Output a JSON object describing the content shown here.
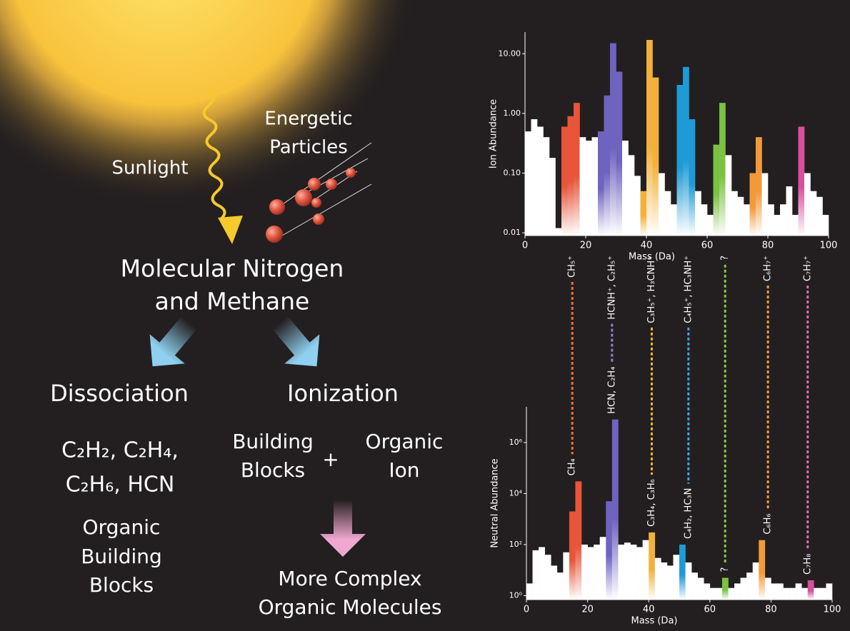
{
  "diagram": {
    "sunlight": "Sunlight",
    "particles": [
      "Energetic",
      "Particles"
    ],
    "source": [
      "Molecular Nitrogen",
      "and Methane"
    ],
    "dissociation": {
      "title": "Dissociation",
      "products": [
        "C₂H₂, C₂H₄,",
        "C₂H₆, HCN"
      ],
      "result": [
        "Organic",
        "Building",
        "Blocks"
      ]
    },
    "ionization": {
      "title": "Ionization",
      "left": [
        "Building",
        "Blocks"
      ],
      "plus": "+",
      "right": [
        "Organic",
        "Ion"
      ],
      "result": [
        "More Complex",
        "Organic Molecules"
      ]
    }
  },
  "chart_data": [
    {
      "type": "histogram",
      "ylabel": "Ion Abundance",
      "xlabel": "Mass (Da)",
      "yscale": "log",
      "bins": [
        0,
        2,
        4,
        6,
        8,
        10,
        12,
        14,
        16,
        18,
        20,
        22,
        24,
        26,
        28,
        30,
        32,
        34,
        36,
        38,
        40,
        42,
        44,
        46,
        48,
        50,
        52,
        54,
        56,
        58,
        60,
        62,
        64,
        66,
        68,
        70,
        72,
        74,
        76,
        78,
        80,
        82,
        84,
        86,
        88,
        90,
        92,
        94,
        96,
        98,
        100
      ],
      "values": [
        0.5,
        0.8,
        0.6,
        0.4,
        0.18,
        0.012,
        0.6,
        0.9,
        1.5,
        0.4,
        0.35,
        0.4,
        0.5,
        2,
        15,
        5,
        0.35,
        0.2,
        0.09,
        0.05,
        17,
        4,
        0.1,
        0.05,
        0.03,
        3,
        6,
        0.8,
        0.05,
        0.03,
        0.02,
        0.3,
        1.5,
        0.2,
        0.05,
        0.04,
        0.03,
        0.1,
        0.4,
        0.1,
        0.03,
        0.02,
        0.03,
        0.06,
        0.02,
        0.6,
        0.1,
        0.05,
        0.04,
        0.02
      ],
      "colors": [
        "#ffffff",
        "#ffffff",
        "#ffffff",
        "#ffffff",
        "#ffffff",
        "#ffffff",
        "#e8553a",
        "#e8553a",
        "#e8553a",
        "#ffffff",
        "#ffffff",
        "#ffffff",
        "#6f63c0",
        "#6f63c0",
        "#6f63c0",
        "#6f63c0",
        "#ffffff",
        "#ffffff",
        "#ffffff",
        "#f2b13a",
        "#f2b13a",
        "#f2b13a",
        "#ffffff",
        "#ffffff",
        "#ffffff",
        "#1e9ad6",
        "#1e9ad6",
        "#1e9ad6",
        "#ffffff",
        "#ffffff",
        "#ffffff",
        "#7cc242",
        "#7cc242",
        "#ffffff",
        "#ffffff",
        "#ffffff",
        "#ffffff",
        "#f29a3a",
        "#f29a3a",
        "#ffffff",
        "#ffffff",
        "#ffffff",
        "#ffffff",
        "#ffffff",
        "#ffffff",
        "#d84f9c",
        "#ffffff",
        "#ffffff",
        "#ffffff",
        "#ffffff"
      ],
      "xlim": [
        0,
        100
      ],
      "xticks": [
        0,
        20,
        40,
        60,
        80,
        100
      ],
      "ylim": [
        0.009,
        23
      ],
      "yticks": [
        0.01,
        {
          "value": 0.1,
          "label": "0.10"
        },
        {
          "value": 1,
          "label": "1.00"
        },
        {
          "value": 10,
          "label": "10.00"
        }
      ]
    },
    {
      "type": "histogram",
      "ylabel": "Neutral Abundance",
      "xlabel": "Mass (Da)",
      "yscale": "log",
      "bins": [
        0,
        2,
        4,
        6,
        8,
        10,
        12,
        14,
        16,
        18,
        20,
        22,
        24,
        26,
        28,
        30,
        32,
        34,
        36,
        38,
        40,
        42,
        44,
        46,
        48,
        50,
        52,
        54,
        56,
        58,
        60,
        62,
        64,
        66,
        68,
        70,
        72,
        74,
        76,
        78,
        80,
        82,
        84,
        86,
        88,
        90,
        92,
        94,
        96,
        98,
        100
      ],
      "values": [
        3,
        60,
        80,
        40,
        15,
        8,
        50,
        2000,
        30000,
        100,
        80,
        100,
        200,
        5000,
        8000000,
        100,
        120,
        100,
        80,
        150,
        300,
        30,
        20,
        15,
        40,
        100,
        20,
        8,
        5,
        3,
        2,
        2,
        5,
        2,
        3,
        5,
        8,
        20,
        150,
        5,
        3,
        3,
        2,
        2,
        3,
        2,
        4,
        2,
        2,
        3
      ],
      "colors": [
        "#ffffff",
        "#ffffff",
        "#ffffff",
        "#ffffff",
        "#ffffff",
        "#ffffff",
        "#ffffff",
        "#e8553a",
        "#e8553a",
        "#ffffff",
        "#ffffff",
        "#ffffff",
        "#ffffff",
        "#6f63c0",
        "#6f63c0",
        "#ffffff",
        "#ffffff",
        "#ffffff",
        "#ffffff",
        "#ffffff",
        "#f2b13a",
        "#ffffff",
        "#ffffff",
        "#ffffff",
        "#ffffff",
        "#1e9ad6",
        "#ffffff",
        "#ffffff",
        "#ffffff",
        "#ffffff",
        "#ffffff",
        "#ffffff",
        "#7cc242",
        "#ffffff",
        "#ffffff",
        "#ffffff",
        "#ffffff",
        "#ffffff",
        "#f29a3a",
        "#ffffff",
        "#ffffff",
        "#ffffff",
        "#ffffff",
        "#ffffff",
        "#ffffff",
        "#ffffff",
        "#d84f9c",
        "#ffffff",
        "#ffffff",
        "#ffffff"
      ],
      "xlim": [
        0,
        100
      ],
      "xticks": [
        0,
        20,
        40,
        60,
        80,
        100
      ],
      "ylim": [
        0.7,
        25000000
      ],
      "yticks": [
        {
          "value": 1,
          "label": "10⁰"
        },
        {
          "value": 100,
          "label": "10²"
        },
        {
          "value": 10000,
          "label": "10⁴"
        },
        {
          "value": 1000000,
          "label": "10⁶"
        }
      ]
    }
  ],
  "annotations": [
    {
      "x": 15,
      "ion": "CH₅⁺",
      "neutral": "CH₄",
      "color": "#e8703a"
    },
    {
      "x": 28,
      "ion": "HCNH⁺, C₂H₅⁺",
      "neutral": "HCN, C₂H₄",
      "color": "#8a80d0"
    },
    {
      "x": 41,
      "ion": "C₃H₅⁺, H₃CNH⁺",
      "neutral": "C₃H₄, C₃H₆",
      "color": "#f2b13a"
    },
    {
      "x": 53,
      "ion": "C₄H₅⁺, HC₃NH⁺",
      "neutral": "C₄H₂, HC₃N",
      "color": "#3aa8e0"
    },
    {
      "x": 65,
      "ion": "?",
      "neutral": "?",
      "color": "#8cc63f"
    },
    {
      "x": 79,
      "ion": "C₆H₇⁺",
      "neutral": "C₆H₆",
      "color": "#f29a3a"
    },
    {
      "x": 92,
      "ion": "C₇H₇⁺",
      "neutral": "C₇H₈",
      "color": "#d86fb0"
    }
  ]
}
